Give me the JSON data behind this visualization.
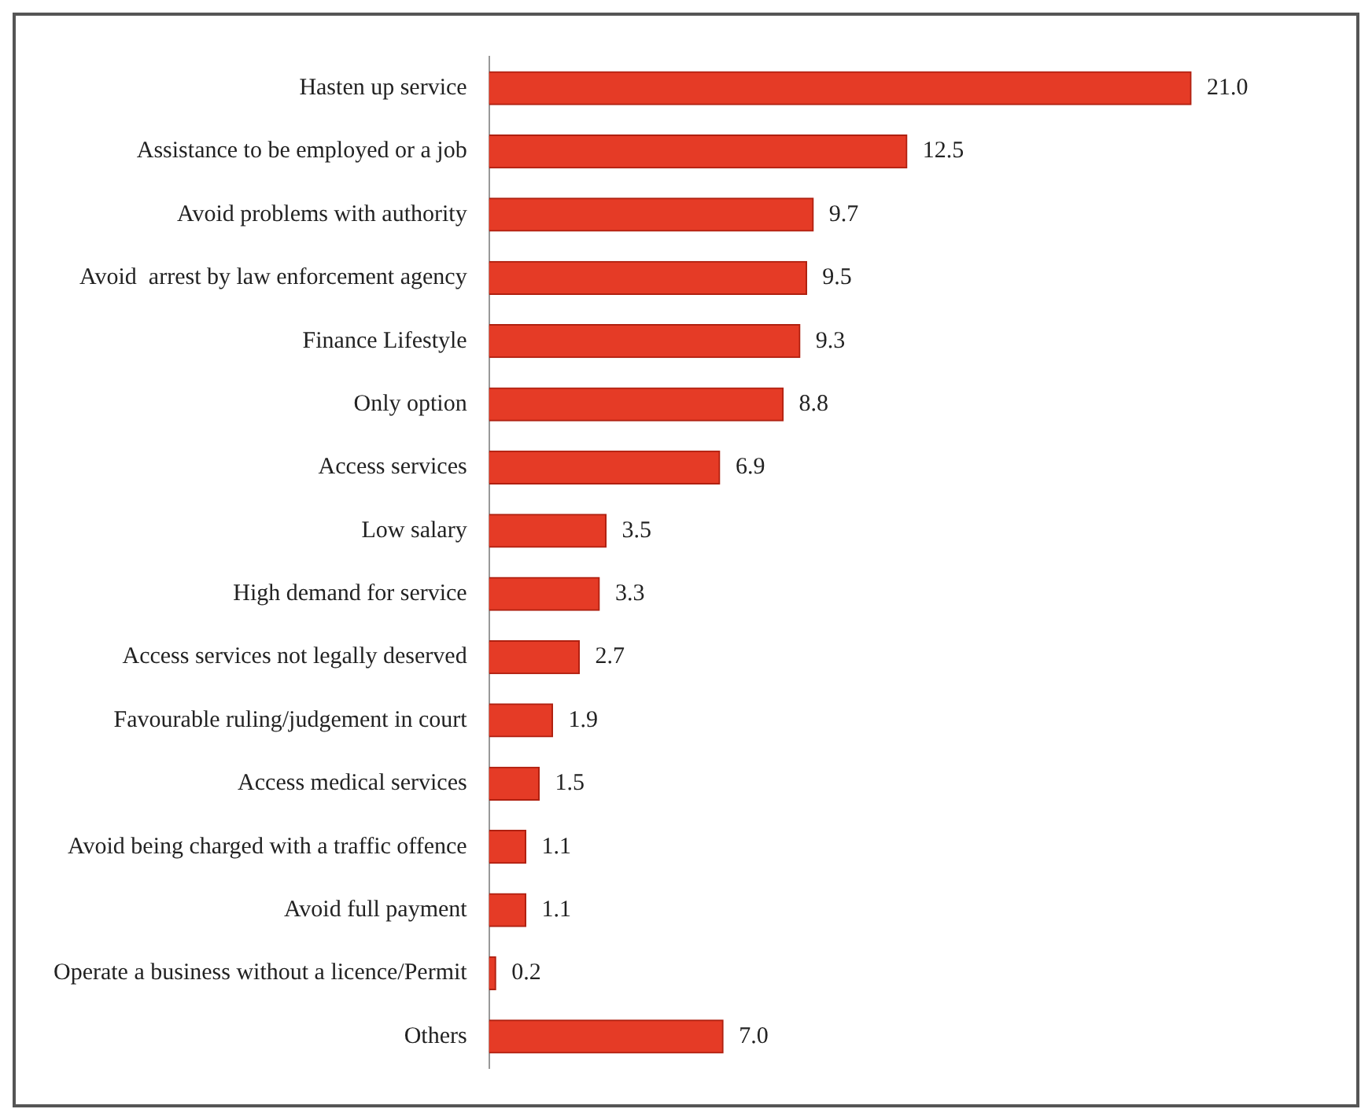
{
  "chart_data": {
    "type": "bar",
    "orientation": "horizontal",
    "categories": [
      "Hasten up service",
      "Assistance to be employed or a job",
      "Avoid problems with authority",
      "Avoid  arrest by law enforcement agency",
      "Finance Lifestyle",
      "Only option",
      "Access services",
      "Low salary",
      "High demand for service",
      "Access services not legally deserved",
      "Favourable ruling/judgement in court",
      "Access medical services",
      "Avoid being charged with a traffic offence",
      "Avoid full payment",
      "Operate a business without a licence/Permit",
      "Others"
    ],
    "values": [
      21.0,
      12.5,
      9.7,
      9.5,
      9.3,
      8.8,
      6.9,
      3.5,
      3.3,
      2.7,
      1.9,
      1.5,
      1.1,
      1.1,
      0.2,
      7.0
    ],
    "value_labels": [
      "21.0",
      "12.5",
      "9.7",
      "9.5",
      "9.3",
      "8.8",
      "6.9",
      "3.5",
      "3.3",
      "2.7",
      "1.9",
      "1.5",
      "1.1",
      "1.1",
      "0.2",
      "7.0"
    ],
    "color": "#e53b26",
    "legend": false,
    "tick_labels": "y"
  }
}
